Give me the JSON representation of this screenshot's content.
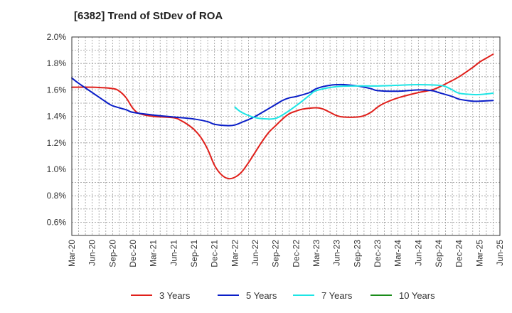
{
  "chart_data": {
    "type": "line",
    "title": "[6382]  Trend of StDev of ROA",
    "xlabel": "",
    "ylabel": "",
    "x_ticks": [
      "Mar-20",
      "Jun-20",
      "Sep-20",
      "Dec-20",
      "Mar-21",
      "Jun-21",
      "Sep-21",
      "Dec-21",
      "Mar-22",
      "Jun-22",
      "Sep-22",
      "Dec-22",
      "Mar-23",
      "Jun-23",
      "Sep-23",
      "Dec-23",
      "Mar-24",
      "Jun-24",
      "Sep-24",
      "Dec-24",
      "Mar-25",
      "Jun-25"
    ],
    "y_ticks": [
      "0.6%",
      "0.8%",
      "1.0%",
      "1.2%",
      "1.4%",
      "1.6%",
      "1.8%",
      "2.0%"
    ],
    "ylim": [
      0.5,
      2.0
    ],
    "grid": true,
    "legend_position": "bottom",
    "series": [
      {
        "name": "3 Years",
        "color": "#e0201b",
        "points": [
          [
            "Mar-20",
            1.62
          ],
          [
            "Jun-20",
            1.62
          ],
          [
            "Sep-20",
            1.61
          ],
          [
            "Oct-20",
            1.59
          ],
          [
            "Nov-20",
            1.54
          ],
          [
            "Dec-20",
            1.46
          ],
          [
            "Jan-21",
            1.42
          ],
          [
            "Mar-21",
            1.4
          ],
          [
            "Jun-21",
            1.39
          ],
          [
            "Jul-21",
            1.37
          ],
          [
            "Aug-21",
            1.34
          ],
          [
            "Sep-21",
            1.3
          ],
          [
            "Oct-21",
            1.24
          ],
          [
            "Nov-21",
            1.15
          ],
          [
            "Dec-21",
            1.03
          ],
          [
            "Jan-22",
            0.96
          ],
          [
            "Feb-22",
            0.93
          ],
          [
            "Mar-22",
            0.94
          ],
          [
            "Apr-22",
            0.98
          ],
          [
            "May-22",
            1.05
          ],
          [
            "Jun-22",
            1.13
          ],
          [
            "Jul-22",
            1.21
          ],
          [
            "Aug-22",
            1.28
          ],
          [
            "Sep-22",
            1.33
          ],
          [
            "Oct-22",
            1.38
          ],
          [
            "Nov-22",
            1.42
          ],
          [
            "Dec-22",
            1.44
          ],
          [
            "Jan-23",
            1.455
          ],
          [
            "Mar-23",
            1.465
          ],
          [
            "Apr-23",
            1.455
          ],
          [
            "May-23",
            1.43
          ],
          [
            "Jun-23",
            1.405
          ],
          [
            "Jul-23",
            1.395
          ],
          [
            "Sep-23",
            1.395
          ],
          [
            "Oct-23",
            1.405
          ],
          [
            "Nov-23",
            1.43
          ],
          [
            "Dec-23",
            1.47
          ],
          [
            "Jan-24",
            1.5
          ],
          [
            "Mar-24",
            1.54
          ],
          [
            "Jun-24",
            1.58
          ],
          [
            "Aug-24",
            1.6
          ],
          [
            "Sep-24",
            1.62
          ],
          [
            "Oct-24",
            1.645
          ],
          [
            "Dec-24",
            1.7
          ],
          [
            "Feb-25",
            1.77
          ],
          [
            "Mar-25",
            1.81
          ],
          [
            "Apr-25",
            1.84
          ],
          [
            "May-25",
            1.87
          ]
        ]
      },
      {
        "name": "5 Years",
        "color": "#0a1ec8",
        "points": [
          [
            "Mar-20",
            1.69
          ],
          [
            "Apr-20",
            1.65
          ],
          [
            "Jun-20",
            1.58
          ],
          [
            "Aug-20",
            1.51
          ],
          [
            "Sep-20",
            1.48
          ],
          [
            "Nov-20",
            1.45
          ],
          [
            "Dec-20",
            1.43
          ],
          [
            "Mar-21",
            1.41
          ],
          [
            "Jun-21",
            1.395
          ],
          [
            "Sep-21",
            1.38
          ],
          [
            "Nov-21",
            1.36
          ],
          [
            "Dec-21",
            1.34
          ],
          [
            "Feb-22",
            1.33
          ],
          [
            "Mar-22",
            1.335
          ],
          [
            "Apr-22",
            1.355
          ],
          [
            "Jun-22",
            1.4
          ],
          [
            "Sep-22",
            1.49
          ],
          [
            "Oct-22",
            1.52
          ],
          [
            "Nov-22",
            1.54
          ],
          [
            "Dec-22",
            1.55
          ],
          [
            "Feb-23",
            1.58
          ],
          [
            "Mar-23",
            1.61
          ],
          [
            "May-23",
            1.635
          ],
          [
            "Jul-23",
            1.64
          ],
          [
            "Sep-23",
            1.63
          ],
          [
            "Nov-23",
            1.61
          ],
          [
            "Dec-23",
            1.595
          ],
          [
            "Mar-24",
            1.59
          ],
          [
            "Jun-24",
            1.6
          ],
          [
            "Aug-24",
            1.595
          ],
          [
            "Sep-24",
            1.58
          ],
          [
            "Nov-24",
            1.55
          ],
          [
            "Dec-24",
            1.53
          ],
          [
            "Feb-25",
            1.515
          ],
          [
            "Mar-25",
            1.515
          ],
          [
            "May-25",
            1.52
          ]
        ]
      },
      {
        "name": "7 Years",
        "color": "#1de5e5",
        "points": [
          [
            "Mar-22",
            1.47
          ],
          [
            "Apr-22",
            1.43
          ],
          [
            "Jun-22",
            1.39
          ],
          [
            "Aug-22",
            1.38
          ],
          [
            "Sep-22",
            1.385
          ],
          [
            "Oct-22",
            1.41
          ],
          [
            "Dec-22",
            1.48
          ],
          [
            "Feb-23",
            1.56
          ],
          [
            "Mar-23",
            1.595
          ],
          [
            "Jun-23",
            1.625
          ],
          [
            "Sep-23",
            1.63
          ],
          [
            "Dec-23",
            1.63
          ],
          [
            "Mar-24",
            1.635
          ],
          [
            "Jun-24",
            1.64
          ],
          [
            "Sep-24",
            1.635
          ],
          [
            "Oct-24",
            1.625
          ],
          [
            "Nov-24",
            1.6
          ],
          [
            "Dec-24",
            1.575
          ],
          [
            "Feb-25",
            1.565
          ],
          [
            "Mar-25",
            1.565
          ],
          [
            "May-25",
            1.575
          ]
        ]
      },
      {
        "name": "10 Years",
        "color": "#1a8c1a",
        "points": []
      }
    ]
  }
}
